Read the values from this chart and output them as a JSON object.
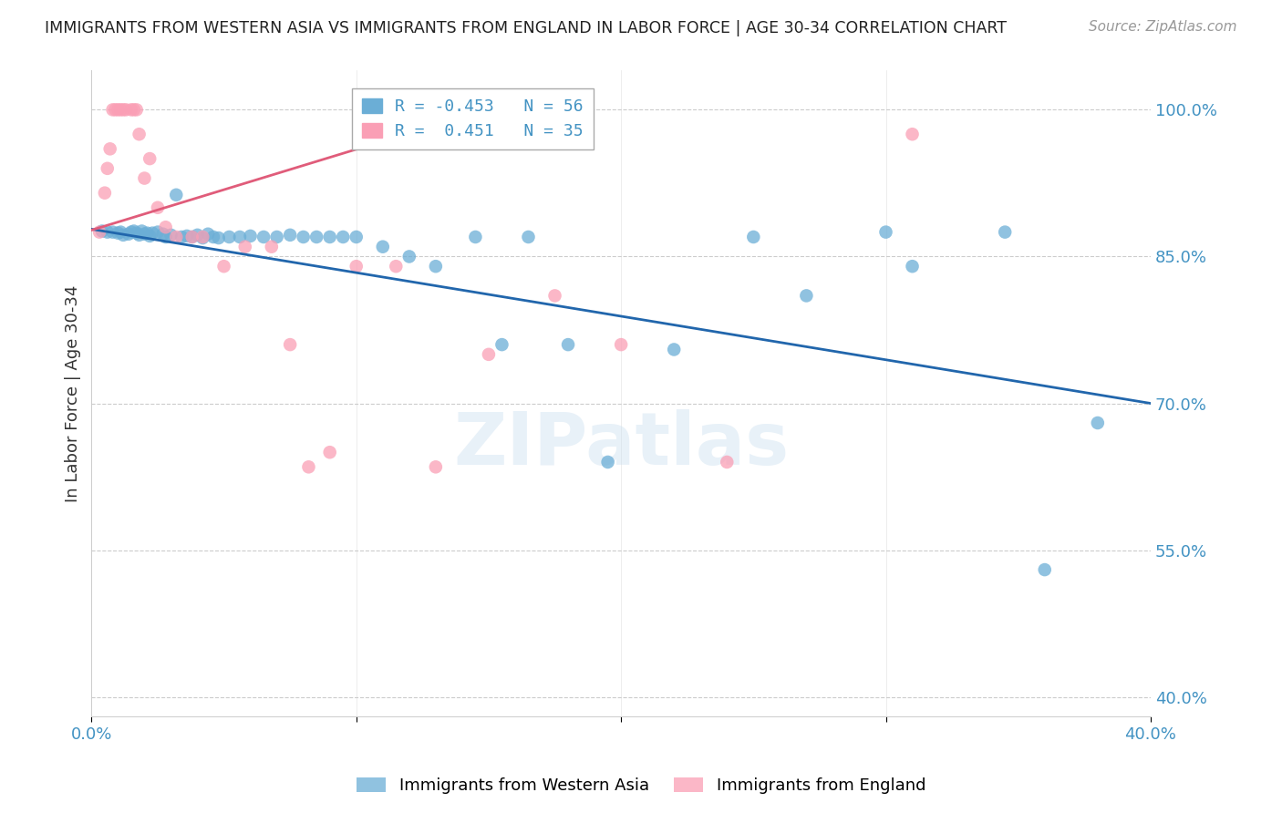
{
  "title": "IMMIGRANTS FROM WESTERN ASIA VS IMMIGRANTS FROM ENGLAND IN LABOR FORCE | AGE 30-34 CORRELATION CHART",
  "source": "Source: ZipAtlas.com",
  "ylabel": "In Labor Force | Age 30-34",
  "yticks": [
    40.0,
    55.0,
    70.0,
    85.0,
    100.0
  ],
  "xlim": [
    0.0,
    0.4
  ],
  "ylim": [
    0.38,
    1.04
  ],
  "watermark": "ZIPatlas",
  "legend_blue_R": "-0.453",
  "legend_blue_N": "56",
  "legend_pink_R": " 0.451",
  "legend_pink_N": "35",
  "blue_color": "#6baed6",
  "pink_color": "#fa9fb5",
  "blue_line_color": "#2166ac",
  "pink_line_color": "#e05c7a",
  "axis_color": "#4393c3",
  "title_color": "#222222",
  "blue_points_x": [
    0.004,
    0.006,
    0.008,
    0.01,
    0.011,
    0.012,
    0.014,
    0.015,
    0.016,
    0.017,
    0.018,
    0.019,
    0.02,
    0.021,
    0.022,
    0.023,
    0.025,
    0.027,
    0.028,
    0.03,
    0.032,
    0.034,
    0.036,
    0.038,
    0.04,
    0.042,
    0.044,
    0.046,
    0.048,
    0.052,
    0.056,
    0.06,
    0.065,
    0.07,
    0.075,
    0.08,
    0.085,
    0.09,
    0.095,
    0.1,
    0.11,
    0.12,
    0.13,
    0.145,
    0.155,
    0.165,
    0.18,
    0.195,
    0.22,
    0.25,
    0.27,
    0.3,
    0.31,
    0.345,
    0.36,
    0.38
  ],
  "blue_points_y": [
    0.876,
    0.875,
    0.875,
    0.874,
    0.875,
    0.872,
    0.873,
    0.875,
    0.876,
    0.874,
    0.872,
    0.876,
    0.873,
    0.874,
    0.871,
    0.874,
    0.875,
    0.873,
    0.87,
    0.872,
    0.913,
    0.87,
    0.871,
    0.87,
    0.872,
    0.869,
    0.873,
    0.87,
    0.869,
    0.87,
    0.87,
    0.871,
    0.87,
    0.87,
    0.872,
    0.87,
    0.87,
    0.87,
    0.87,
    0.87,
    0.86,
    0.85,
    0.84,
    0.87,
    0.76,
    0.87,
    0.76,
    0.64,
    0.755,
    0.87,
    0.81,
    0.875,
    0.84,
    0.875,
    0.53,
    0.68
  ],
  "pink_points_x": [
    0.003,
    0.005,
    0.006,
    0.007,
    0.008,
    0.009,
    0.01,
    0.011,
    0.012,
    0.013,
    0.015,
    0.016,
    0.017,
    0.018,
    0.02,
    0.022,
    0.025,
    0.028,
    0.032,
    0.038,
    0.042,
    0.05,
    0.058,
    0.068,
    0.075,
    0.082,
    0.09,
    0.1,
    0.115,
    0.13,
    0.15,
    0.175,
    0.2,
    0.24,
    0.31
  ],
  "pink_points_y": [
    0.875,
    0.915,
    0.94,
    0.96,
    1.0,
    1.0,
    1.0,
    1.0,
    1.0,
    1.0,
    1.0,
    1.0,
    1.0,
    0.975,
    0.93,
    0.95,
    0.9,
    0.88,
    0.87,
    0.87,
    0.87,
    0.84,
    0.86,
    0.86,
    0.76,
    0.635,
    0.65,
    0.84,
    0.84,
    0.635,
    0.75,
    0.81,
    0.76,
    0.64,
    0.975
  ],
  "blue_trend_x": [
    0.0,
    0.4
  ],
  "blue_trend_y": [
    0.878,
    0.7
  ],
  "pink_trend_x": [
    0.0,
    0.155
  ],
  "pink_trend_y": [
    0.877,
    1.005
  ],
  "xtick_positions": [
    0.0,
    0.1,
    0.2,
    0.3,
    0.4
  ]
}
